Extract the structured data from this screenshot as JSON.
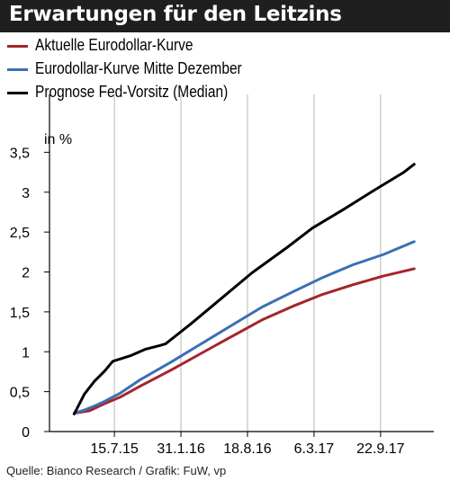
{
  "title": "Erwartungen für den Leitzins",
  "source": "Quelle: Bianco Research / Grafik: FuW, vp",
  "chart_data": {
    "type": "line",
    "ylabel": "in %",
    "ylim": [
      0,
      4
    ],
    "yticks": [
      0,
      0.5,
      1,
      1.5,
      2,
      2.5,
      3,
      3.5
    ],
    "ytick_labels": [
      "0",
      "0,5",
      "1",
      "1,5",
      "2",
      "2,5",
      "3",
      "3,5"
    ],
    "xlim": [
      "2015-01-01",
      "2018-03-01"
    ],
    "xticks": [
      "2015-07-15",
      "2016-01-31",
      "2016-08-18",
      "2017-03-06",
      "2017-09-22"
    ],
    "xtick_labels": [
      "15.7.15",
      "31.1.16",
      "18.8.16",
      "6.3.17",
      "22.9.17"
    ],
    "grid": "vertical",
    "legend_position": "top-left",
    "series": [
      {
        "name": "Aktuelle Eurodollar-Kurve",
        "color": "#a3262b",
        "points": [
          [
            "2015-03-16",
            0.23
          ],
          [
            "2015-05-01",
            0.26
          ],
          [
            "2015-06-16",
            0.35
          ],
          [
            "2015-08-01",
            0.43
          ],
          [
            "2015-10-01",
            0.57
          ],
          [
            "2016-01-01",
            0.77
          ],
          [
            "2016-04-01",
            0.98
          ],
          [
            "2016-07-01",
            1.19
          ],
          [
            "2016-10-01",
            1.4
          ],
          [
            "2017-01-01",
            1.57
          ],
          [
            "2017-04-01",
            1.72
          ],
          [
            "2017-07-01",
            1.84
          ],
          [
            "2017-10-01",
            1.95
          ],
          [
            "2018-01-01",
            2.04
          ]
        ]
      },
      {
        "name": "Eurodollar-Kurve Mitte Dezember",
        "color": "#3a6fb5",
        "points": [
          [
            "2015-03-16",
            0.23
          ],
          [
            "2015-04-16",
            0.27
          ],
          [
            "2015-05-16",
            0.32
          ],
          [
            "2015-06-16",
            0.38
          ],
          [
            "2015-08-01",
            0.48
          ],
          [
            "2015-10-01",
            0.65
          ],
          [
            "2016-01-01",
            0.87
          ],
          [
            "2016-04-01",
            1.1
          ],
          [
            "2016-07-01",
            1.33
          ],
          [
            "2016-10-01",
            1.56
          ],
          [
            "2017-01-01",
            1.75
          ],
          [
            "2017-04-01",
            1.93
          ],
          [
            "2017-07-01",
            2.09
          ],
          [
            "2017-10-01",
            2.22
          ],
          [
            "2018-01-01",
            2.38
          ]
        ]
      },
      {
        "name": "Prognose Fed-Vorsitz (Median)",
        "color": "#000000",
        "points": [
          [
            "2015-03-16",
            0.22
          ],
          [
            "2015-04-16",
            0.47
          ],
          [
            "2015-05-16",
            0.63
          ],
          [
            "2015-06-16",
            0.76
          ],
          [
            "2015-07-10",
            0.88
          ],
          [
            "2015-09-01",
            0.95
          ],
          [
            "2015-10-15",
            1.03
          ],
          [
            "2015-12-01",
            1.08
          ],
          [
            "2015-12-16",
            1.1
          ],
          [
            "2016-03-01",
            1.35
          ],
          [
            "2016-06-01",
            1.67
          ],
          [
            "2016-09-01",
            1.99
          ],
          [
            "2016-12-16",
            2.31
          ],
          [
            "2017-03-01",
            2.55
          ],
          [
            "2017-06-01",
            2.78
          ],
          [
            "2017-09-01",
            3.02
          ],
          [
            "2017-12-01",
            3.25
          ],
          [
            "2018-01-01",
            3.35
          ]
        ]
      }
    ]
  }
}
